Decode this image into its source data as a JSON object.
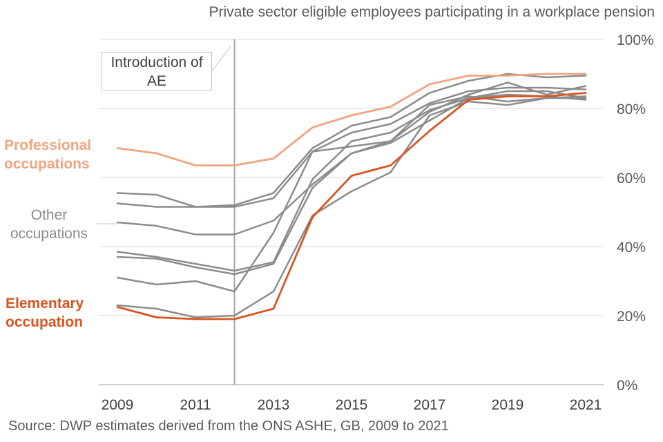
{
  "chart_data": {
    "type": "line",
    "title": "Private sector eligible employees participating in a workplace pension",
    "x": [
      2009,
      2010,
      2011,
      2012,
      2013,
      2014,
      2015,
      2016,
      2017,
      2018,
      2019,
      2020,
      2021
    ],
    "x_tick_labels": [
      "2009",
      "2011",
      "2013",
      "2015",
      "2017",
      "2019",
      "2021"
    ],
    "y_tick_labels": [
      "0%",
      "20%",
      "40%",
      "60%",
      "80%",
      "100%"
    ],
    "ylim": [
      0,
      100
    ],
    "y_axis_side": "right",
    "grid": true,
    "annotation": {
      "line1": "Introduction of",
      "line2": "AE",
      "x": 2012
    },
    "series": [
      {
        "name": "Professional occupations",
        "group": "professional",
        "color": "#f0a47e",
        "values": [
          68.5,
          67,
          63.5,
          63.5,
          65.5,
          74.5,
          78,
          80.5,
          87,
          89.5,
          89.5,
          90,
          90
        ]
      },
      {
        "name": "Other occupations 1",
        "group": "other",
        "color": "#8c8c8c",
        "values": [
          55.5,
          55,
          51.5,
          52,
          55.5,
          68.5,
          75,
          77.5,
          84.5,
          88,
          90,
          89,
          89.5
        ]
      },
      {
        "name": "Other occupations 2",
        "group": "other",
        "color": "#8c8c8c",
        "values": [
          52.5,
          51.5,
          51.5,
          51.5,
          54,
          67.5,
          73,
          75.5,
          81.5,
          85,
          86,
          86,
          85.5
        ]
      },
      {
        "name": "Other occupations 3",
        "group": "other",
        "color": "#8c8c8c",
        "values": [
          47,
          46,
          43.5,
          43.5,
          47.5,
          58,
          67,
          70.5,
          79,
          84,
          87.5,
          84,
          86.5
        ]
      },
      {
        "name": "Other occupations 4",
        "group": "other",
        "color": "#8c8c8c",
        "values": [
          38.5,
          37,
          35,
          33,
          35.5,
          59.5,
          70.5,
          73,
          79.5,
          83,
          85,
          85,
          83
        ]
      },
      {
        "name": "Other occupations 5",
        "group": "other",
        "color": "#8c8c8c",
        "values": [
          37,
          36.5,
          34,
          32,
          35,
          57,
          67,
          70,
          76.5,
          83,
          84,
          83.5,
          82.5
        ]
      },
      {
        "name": "Other occupations 6",
        "group": "other",
        "color": "#8c8c8c",
        "values": [
          31,
          29,
          30,
          27,
          44,
          67.5,
          69,
          70.5,
          81,
          83.5,
          82,
          83,
          83
        ]
      },
      {
        "name": "Other occupations 7",
        "group": "other",
        "color": "#8c8c8c",
        "values": [
          23,
          22,
          19.5,
          20,
          27,
          49,
          56,
          61.5,
          78,
          82,
          81,
          83,
          83.5
        ]
      },
      {
        "name": "Elementary occupation",
        "group": "elementary",
        "color": "#d9541e",
        "values": [
          22.5,
          19.5,
          19,
          19,
          22,
          48.5,
          60.5,
          63.5,
          73.5,
          82.5,
          83.5,
          83.5,
          84.5
        ]
      }
    ],
    "labels": {
      "professional_line1": "Professional",
      "professional_line2": "occupations",
      "other_line1": "Other",
      "other_line2": "occupations",
      "elementary_line1": "Elementary",
      "elementary_line2": "occupation"
    },
    "source": "Source: DWP estimates derived from the ONS ASHE, GB, 2009 to 2021"
  }
}
